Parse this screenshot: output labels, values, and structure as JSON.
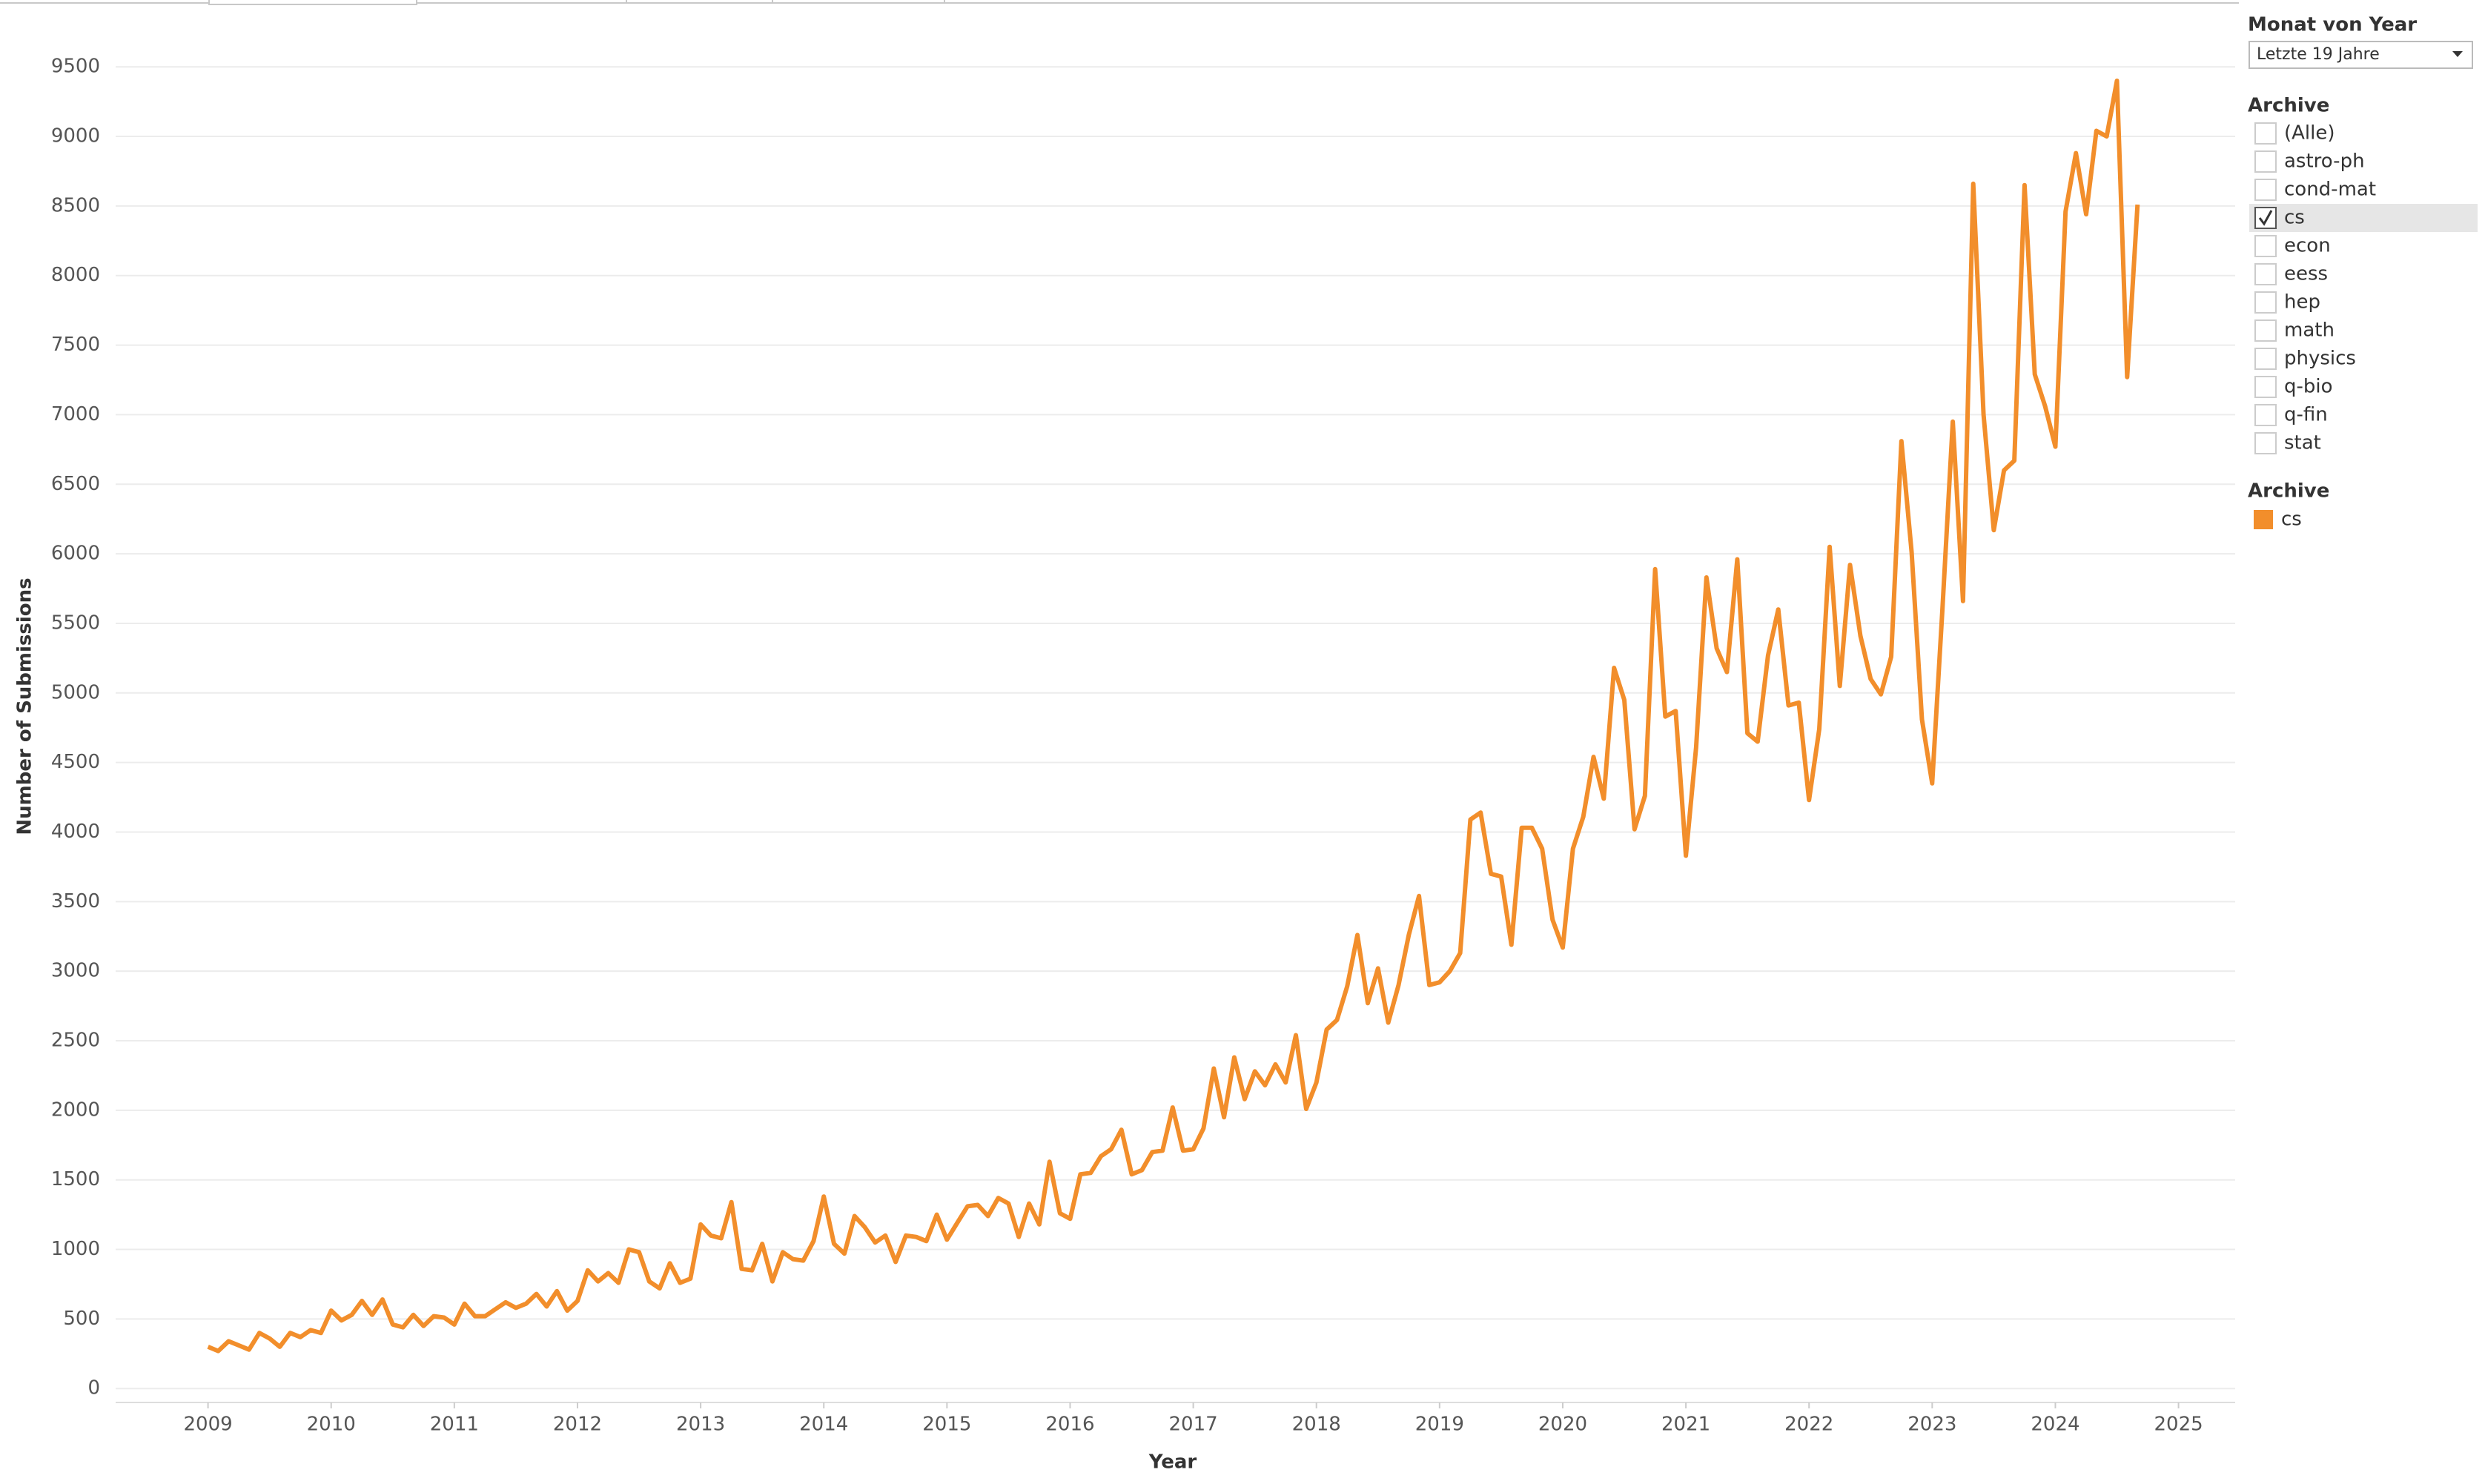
{
  "chart_data": {
    "type": "line",
    "x_label": "Year",
    "y_label": "Number of Submissions",
    "x": [
      2009,
      2009.083,
      2009.167,
      2009.25,
      2009.333,
      2009.417,
      2009.5,
      2009.583,
      2009.667,
      2009.75,
      2009.833,
      2009.917,
      2010,
      2010.083,
      2010.167,
      2010.25,
      2010.333,
      2010.417,
      2010.5,
      2010.583,
      2010.667,
      2010.75,
      2010.833,
      2010.917,
      2011,
      2011.083,
      2011.167,
      2011.25,
      2011.333,
      2011.417,
      2011.5,
      2011.583,
      2011.667,
      2011.75,
      2011.833,
      2011.917,
      2012,
      2012.083,
      2012.167,
      2012.25,
      2012.333,
      2012.417,
      2012.5,
      2012.583,
      2012.667,
      2012.75,
      2012.833,
      2012.917,
      2013,
      2013.083,
      2013.167,
      2013.25,
      2013.333,
      2013.417,
      2013.5,
      2013.583,
      2013.667,
      2013.75,
      2013.833,
      2013.917,
      2014,
      2014.083,
      2014.167,
      2014.25,
      2014.333,
      2014.417,
      2014.5,
      2014.583,
      2014.667,
      2014.75,
      2014.833,
      2014.917,
      2015,
      2015.083,
      2015.167,
      2015.25,
      2015.333,
      2015.417,
      2015.5,
      2015.583,
      2015.667,
      2015.75,
      2015.833,
      2015.917,
      2016,
      2016.083,
      2016.167,
      2016.25,
      2016.333,
      2016.417,
      2016.5,
      2016.583,
      2016.667,
      2016.75,
      2016.833,
      2016.917,
      2017,
      2017.083,
      2017.167,
      2017.25,
      2017.333,
      2017.417,
      2017.5,
      2017.583,
      2017.667,
      2017.75,
      2017.833,
      2017.917,
      2018,
      2018.083,
      2018.167,
      2018.25,
      2018.333,
      2018.417,
      2018.5,
      2018.583,
      2018.667,
      2018.75,
      2018.833,
      2018.917,
      2019,
      2019.083,
      2019.167,
      2019.25,
      2019.333,
      2019.417,
      2019.5,
      2019.583,
      2019.667,
      2019.75,
      2019.833,
      2019.917,
      2020,
      2020.083,
      2020.167,
      2020.25,
      2020.333,
      2020.417,
      2020.5,
      2020.583,
      2020.667,
      2020.75,
      2020.833,
      2020.917,
      2021,
      2021.083,
      2021.167,
      2021.25,
      2021.333,
      2021.417,
      2021.5,
      2021.583,
      2021.667,
      2021.75,
      2021.833,
      2021.917,
      2022,
      2022.083,
      2022.167,
      2022.25,
      2022.333,
      2022.417,
      2022.5,
      2022.583,
      2022.667,
      2022.75,
      2022.833,
      2022.917,
      2023,
      2023.083,
      2023.167,
      2023.25,
      2023.333,
      2023.417,
      2023.5,
      2023.583,
      2023.667,
      2023.75,
      2023.833,
      2023.917,
      2024,
      2024.083,
      2024.167,
      2024.25,
      2024.333,
      2024.417,
      2024.5,
      2024.583,
      2024.667
    ],
    "series": [
      {
        "name": "cs",
        "color": "#f28e2b",
        "values": [
          300,
          270,
          340,
          310,
          280,
          400,
          360,
          300,
          400,
          370,
          420,
          400,
          560,
          490,
          530,
          630,
          530,
          640,
          460,
          440,
          530,
          450,
          520,
          510,
          460,
          610,
          520,
          520,
          570,
          620,
          580,
          610,
          680,
          590,
          700,
          560,
          630,
          850,
          770,
          830,
          760,
          1000,
          980,
          770,
          720,
          900,
          760,
          790,
          1180,
          1100,
          1080,
          1340,
          860,
          850,
          1040,
          770,
          980,
          930,
          920,
          1060,
          1380,
          1040,
          970,
          1240,
          1160,
          1050,
          1100,
          910,
          1100,
          1090,
          1060,
          1250,
          1070,
          1190,
          1310,
          1320,
          1240,
          1370,
          1330,
          1090,
          1330,
          1180,
          1630,
          1260,
          1220,
          1540,
          1550,
          1670,
          1720,
          1860,
          1540,
          1570,
          1700,
          1710,
          2020,
          1710,
          1720,
          1870,
          2300,
          1950,
          2380,
          2080,
          2280,
          2180,
          2330,
          2200,
          2540,
          2010,
          2200,
          2580,
          2650,
          2890,
          3260,
          2770,
          3020,
          2630,
          2900,
          3260,
          3540,
          2900,
          2920,
          3000,
          3130,
          4090,
          4140,
          3700,
          3680,
          3190,
          4030,
          4030,
          3880,
          3370,
          3170,
          3880,
          4110,
          4540,
          4240,
          5180,
          4950,
          4020,
          4260,
          5890,
          4830,
          4870,
          3830,
          4610,
          5830,
          5320,
          5150,
          5960,
          4710,
          4650,
          5270,
          5600,
          4910,
          4930,
          4230,
          4740,
          6050,
          5050,
          5920,
          5410,
          5100,
          4990,
          5260,
          6810,
          6010,
          4810,
          4350,
          5600,
          6950,
          5660,
          8660,
          7000,
          6170,
          6600,
          6670,
          8650,
          7290,
          7060,
          6770,
          8460,
          8880,
          8440,
          9040,
          9000,
          9400,
          7270,
          8510
        ]
      }
    ],
    "xlim": [
      2008.25,
      2025.46
    ],
    "xticks": [
      2009,
      2010,
      2011,
      2012,
      2013,
      2014,
      2015,
      2016,
      2017,
      2018,
      2019,
      2020,
      2021,
      2022,
      2023,
      2024,
      2025
    ],
    "ylim": [
      -100,
      9890
    ],
    "yticks": [
      0,
      500,
      1000,
      1500,
      2000,
      2500,
      3000,
      3500,
      4000,
      4500,
      5000,
      5500,
      6000,
      6500,
      7000,
      7500,
      8000,
      8500,
      9000,
      9500
    ],
    "grid": true,
    "legend_title": "Archive"
  },
  "date_filter": {
    "title": "Monat von Year",
    "selection": "Letzte 19 Jahre"
  },
  "archive_filter": {
    "title": "Archive",
    "items": [
      {
        "label": "(Alle)",
        "checked": false
      },
      {
        "label": "astro-ph",
        "checked": false
      },
      {
        "label": "cond-mat",
        "checked": false
      },
      {
        "label": "cs",
        "checked": true
      },
      {
        "label": "econ",
        "checked": false
      },
      {
        "label": "eess",
        "checked": false
      },
      {
        "label": "hep",
        "checked": false
      },
      {
        "label": "math",
        "checked": false
      },
      {
        "label": "physics",
        "checked": false
      },
      {
        "label": "q-bio",
        "checked": false
      },
      {
        "label": "q-fin",
        "checked": false
      },
      {
        "label": "stat",
        "checked": false
      }
    ]
  }
}
